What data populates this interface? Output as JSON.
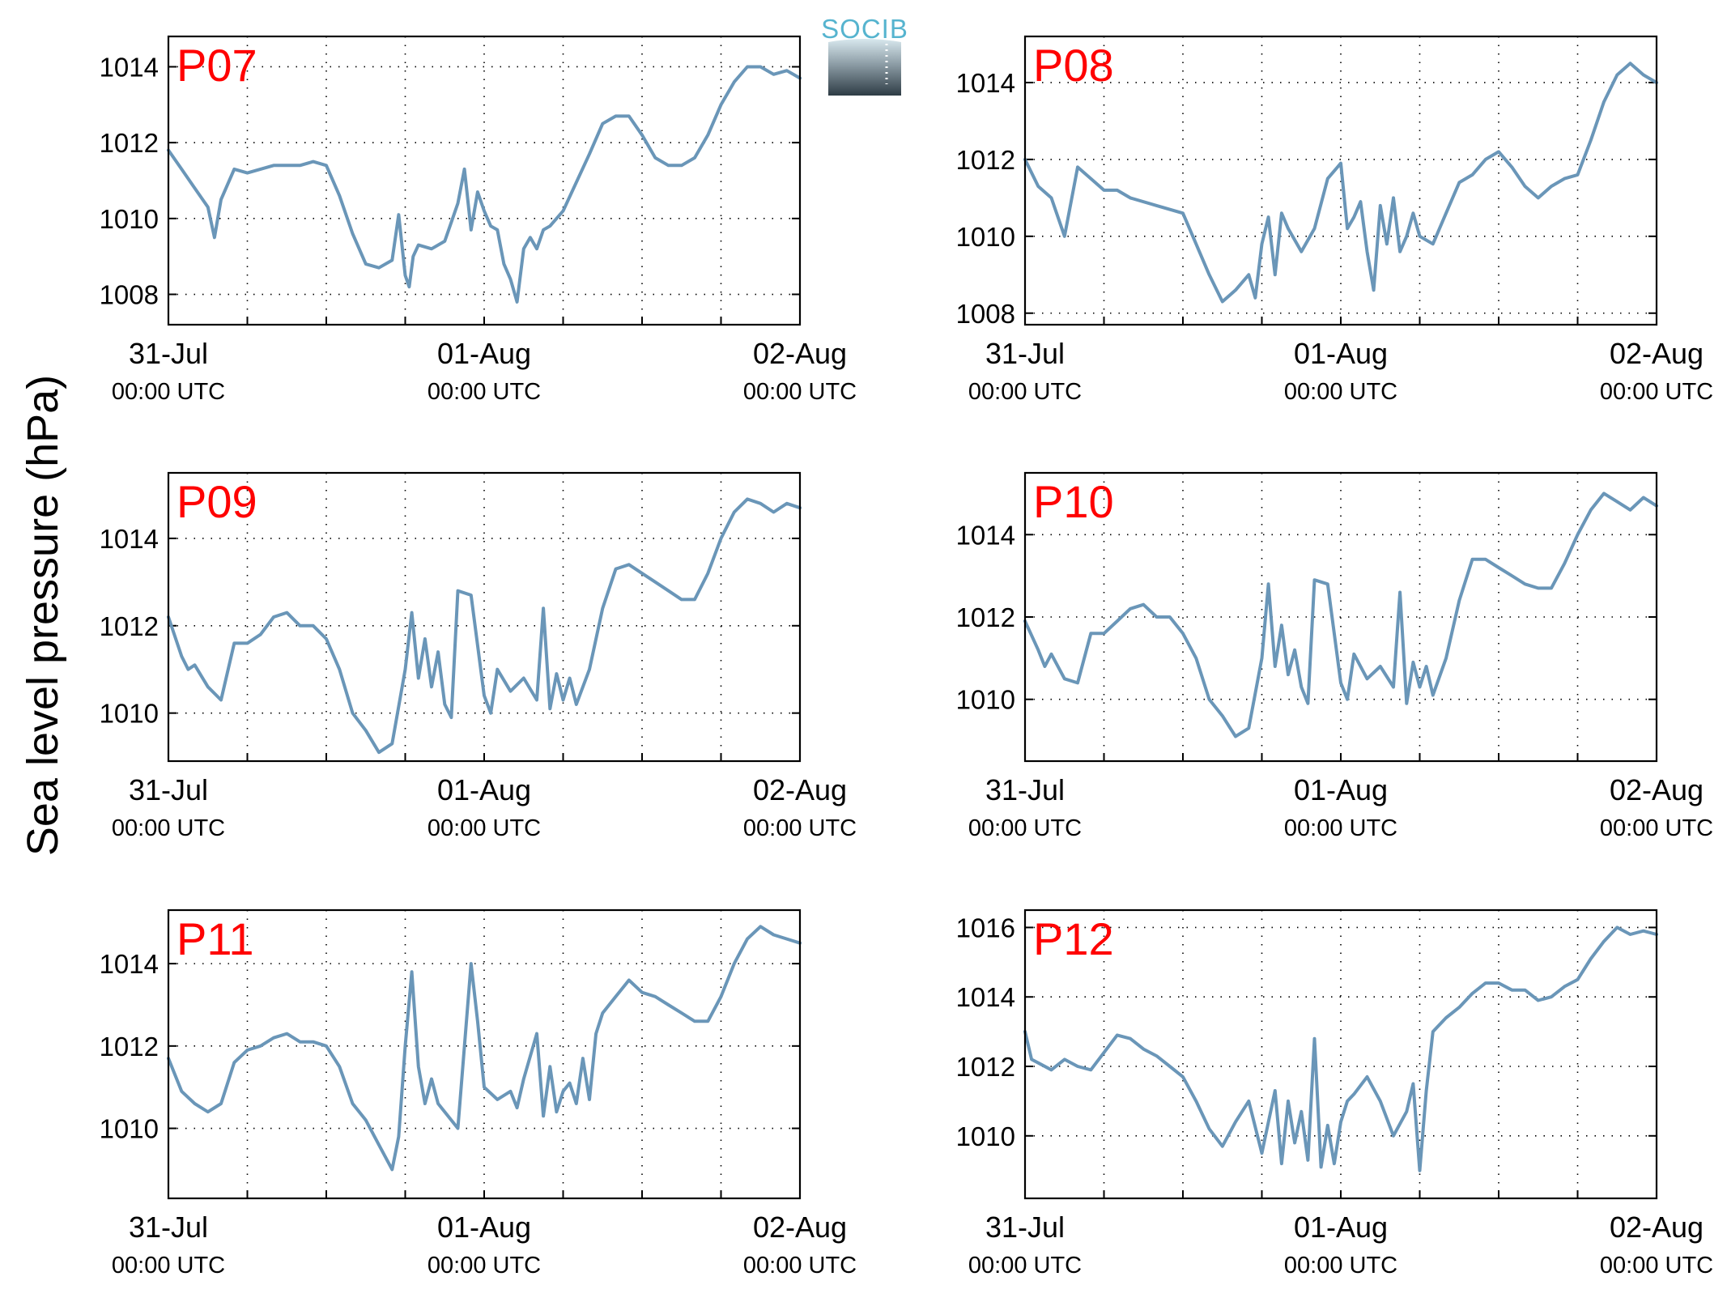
{
  "figure": {
    "ylabel": "Sea level pressure (hPa)",
    "logo_text": "SOCIB",
    "line_color": "#6a96b8",
    "label_color": "#ff0000",
    "grid_style": "dotted",
    "x_ticks": [
      {
        "line1": "31-Jul",
        "line2": "00:00 UTC"
      },
      {
        "line1": "01-Aug",
        "line2": "00:00 UTC"
      },
      {
        "line1": "02-Aug",
        "line2": "00:00 UTC"
      }
    ]
  },
  "chart_data": [
    {
      "type": "line",
      "label": "P07",
      "x_unit": "hours from 31-Jul 00:00 UTC",
      "xlim": [
        0,
        48
      ],
      "ylim": [
        1007.2,
        1014.8
      ],
      "yticks": [
        1008,
        1010,
        1012,
        1014
      ],
      "x": [
        0,
        1,
        2,
        3,
        3.5,
        4,
        5,
        6,
        8,
        10,
        11,
        12,
        13,
        14,
        15,
        16,
        17,
        17.5,
        18,
        18.3,
        18.6,
        19,
        20,
        21,
        22,
        22.5,
        23,
        23.5,
        24,
        24.5,
        25,
        25.5,
        26,
        26.5,
        27,
        27.5,
        28,
        28.5,
        29,
        30,
        32,
        33,
        34,
        35,
        36,
        37,
        38,
        39,
        40,
        41,
        42,
        43,
        44,
        45,
        46,
        47,
        48
      ],
      "values": [
        1011.8,
        1011.3,
        1010.8,
        1010.3,
        1009.5,
        1010.5,
        1011.3,
        1011.2,
        1011.4,
        1011.4,
        1011.5,
        1011.4,
        1010.6,
        1009.6,
        1008.8,
        1008.7,
        1008.9,
        1010.1,
        1008.5,
        1008.2,
        1009.0,
        1009.3,
        1009.2,
        1009.4,
        1010.4,
        1011.3,
        1009.7,
        1010.7,
        1010.2,
        1009.8,
        1009.7,
        1008.8,
        1008.4,
        1007.8,
        1009.2,
        1009.5,
        1009.2,
        1009.7,
        1009.8,
        1010.2,
        1011.7,
        1012.5,
        1012.7,
        1012.7,
        1012.2,
        1011.6,
        1011.4,
        1011.4,
        1011.6,
        1012.2,
        1013.0,
        1013.6,
        1014.0,
        1014.0,
        1013.8,
        1013.9,
        1013.7
      ]
    },
    {
      "type": "line",
      "label": "P08",
      "x_unit": "hours from 31-Jul 00:00 UTC",
      "xlim": [
        0,
        48
      ],
      "ylim": [
        1007.7,
        1015.2
      ],
      "yticks": [
        1008,
        1010,
        1012,
        1014
      ],
      "x": [
        0,
        1,
        2,
        3,
        4,
        5,
        6,
        7,
        8,
        10,
        12,
        13,
        14,
        15,
        16,
        17,
        17.5,
        18,
        18.5,
        19,
        19.5,
        20,
        21,
        22,
        23,
        24,
        24.5,
        25,
        25.5,
        26,
        26.5,
        27,
        27.5,
        28,
        28.5,
        29,
        29.5,
        30,
        31,
        32,
        33,
        34,
        35,
        36,
        37,
        38,
        39,
        40,
        41,
        42,
        43,
        44,
        45,
        46,
        47,
        48
      ],
      "values": [
        1012.0,
        1011.3,
        1011.0,
        1010.0,
        1011.8,
        1011.5,
        1011.2,
        1011.2,
        1011.0,
        1010.8,
        1010.6,
        1009.8,
        1009.0,
        1008.3,
        1008.6,
        1009.0,
        1008.4,
        1009.8,
        1010.5,
        1009.0,
        1010.6,
        1010.2,
        1009.6,
        1010.2,
        1011.5,
        1011.9,
        1010.2,
        1010.5,
        1010.9,
        1009.6,
        1008.6,
        1010.8,
        1009.8,
        1011.0,
        1009.6,
        1010.0,
        1010.6,
        1010.0,
        1009.8,
        1010.6,
        1011.4,
        1011.6,
        1012.0,
        1012.2,
        1011.8,
        1011.3,
        1011.0,
        1011.3,
        1011.5,
        1011.6,
        1012.5,
        1013.5,
        1014.2,
        1014.5,
        1014.2,
        1014.0
      ]
    },
    {
      "type": "line",
      "label": "P09",
      "x_unit": "hours from 31-Jul 00:00 UTC",
      "xlim": [
        0,
        48
      ],
      "ylim": [
        1008.9,
        1015.5
      ],
      "yticks": [
        1010,
        1012,
        1014
      ],
      "x": [
        0,
        1,
        1.5,
        2,
        3,
        4,
        5,
        6,
        7,
        8,
        9,
        10,
        11,
        12,
        13,
        14,
        15,
        16,
        17,
        18,
        18.5,
        19,
        19.5,
        20,
        20.5,
        21,
        21.5,
        22,
        23,
        24,
        24.5,
        25,
        26,
        27,
        28,
        28.5,
        29,
        29.5,
        30,
        30.5,
        31,
        32,
        33,
        34,
        35,
        36,
        37,
        38,
        39,
        40,
        41,
        42,
        43,
        44,
        45,
        46,
        47,
        48
      ],
      "values": [
        1012.2,
        1011.3,
        1011.0,
        1011.1,
        1010.6,
        1010.3,
        1011.6,
        1011.6,
        1011.8,
        1012.2,
        1012.3,
        1012.0,
        1012.0,
        1011.7,
        1011.0,
        1010.0,
        1009.6,
        1009.1,
        1009.3,
        1011.0,
        1012.3,
        1010.8,
        1011.7,
        1010.6,
        1011.4,
        1010.2,
        1009.9,
        1012.8,
        1012.7,
        1010.4,
        1010.0,
        1011.0,
        1010.5,
        1010.8,
        1010.3,
        1012.4,
        1010.1,
        1010.9,
        1010.3,
        1010.8,
        1010.2,
        1011.0,
        1012.4,
        1013.3,
        1013.4,
        1013.2,
        1013.0,
        1012.8,
        1012.6,
        1012.6,
        1013.2,
        1014.0,
        1014.6,
        1014.9,
        1014.8,
        1014.6,
        1014.8,
        1014.7
      ]
    },
    {
      "type": "line",
      "label": "P10",
      "x_unit": "hours from 31-Jul 00:00 UTC",
      "xlim": [
        0,
        48
      ],
      "ylim": [
        1008.5,
        1015.5
      ],
      "yticks": [
        1010,
        1012,
        1014
      ],
      "x": [
        0,
        1,
        1.5,
        2,
        3,
        4,
        5,
        6,
        7,
        8,
        9,
        10,
        11,
        12,
        13,
        14,
        15,
        16,
        17,
        18,
        18.5,
        19,
        19.5,
        20,
        20.5,
        21,
        21.5,
        22,
        23,
        24,
        24.5,
        25,
        26,
        27,
        28,
        28.5,
        29,
        29.5,
        30,
        30.5,
        31,
        32,
        33,
        34,
        35,
        36,
        37,
        38,
        39,
        40,
        41,
        42,
        43,
        44,
        45,
        46,
        47,
        48
      ],
      "values": [
        1011.9,
        1011.2,
        1010.8,
        1011.1,
        1010.5,
        1010.4,
        1011.6,
        1011.6,
        1011.9,
        1012.2,
        1012.3,
        1012.0,
        1012.0,
        1011.6,
        1011.0,
        1010.0,
        1009.6,
        1009.1,
        1009.3,
        1011.0,
        1012.8,
        1010.8,
        1011.8,
        1010.6,
        1011.2,
        1010.3,
        1009.9,
        1012.9,
        1012.8,
        1010.4,
        1010.0,
        1011.1,
        1010.5,
        1010.8,
        1010.3,
        1012.6,
        1009.9,
        1010.9,
        1010.3,
        1010.8,
        1010.1,
        1011.0,
        1012.4,
        1013.4,
        1013.4,
        1013.2,
        1013.0,
        1012.8,
        1012.7,
        1012.7,
        1013.3,
        1014.0,
        1014.6,
        1015.0,
        1014.8,
        1014.6,
        1014.9,
        1014.7
      ]
    },
    {
      "type": "line",
      "label": "P11",
      "x_unit": "hours from 31-Jul 00:00 UTC",
      "xlim": [
        0,
        48
      ],
      "ylim": [
        1008.3,
        1015.3
      ],
      "yticks": [
        1010,
        1012,
        1014
      ],
      "x": [
        0,
        1,
        2,
        3,
        4,
        5,
        6,
        7,
        8,
        9,
        10,
        11,
        12,
        13,
        14,
        15,
        16,
        17,
        17.5,
        18,
        18.5,
        19,
        19.5,
        20,
        20.5,
        21,
        22,
        23,
        23.5,
        24,
        25,
        26,
        26.5,
        27,
        28,
        28.5,
        29,
        29.5,
        30,
        30.5,
        31,
        31.5,
        32,
        32.5,
        33,
        34,
        35,
        36,
        37,
        38,
        39,
        40,
        41,
        42,
        43,
        44,
        45,
        46,
        47,
        48
      ],
      "values": [
        1011.7,
        1010.9,
        1010.6,
        1010.4,
        1010.6,
        1011.6,
        1011.9,
        1012.0,
        1012.2,
        1012.3,
        1012.1,
        1012.1,
        1012.0,
        1011.5,
        1010.6,
        1010.2,
        1009.6,
        1009.0,
        1009.8,
        1012.0,
        1013.8,
        1011.5,
        1010.6,
        1011.2,
        1010.6,
        1010.4,
        1010.0,
        1014.0,
        1012.6,
        1011.0,
        1010.7,
        1010.9,
        1010.5,
        1011.2,
        1012.3,
        1010.3,
        1011.5,
        1010.4,
        1010.9,
        1011.1,
        1010.6,
        1011.7,
        1010.7,
        1012.3,
        1012.8,
        1013.2,
        1013.6,
        1013.3,
        1013.2,
        1013.0,
        1012.8,
        1012.6,
        1012.6,
        1013.2,
        1014.0,
        1014.6,
        1014.9,
        1014.7,
        1014.6,
        1014.5
      ]
    },
    {
      "type": "line",
      "label": "P12",
      "x_unit": "hours from 31-Jul 00:00 UTC",
      "xlim": [
        0,
        48
      ],
      "ylim": [
        1008.2,
        1016.5
      ],
      "yticks": [
        1010,
        1012,
        1014,
        1016
      ],
      "x": [
        0,
        0.5,
        1,
        2,
        3,
        4,
        5,
        6,
        7,
        8,
        9,
        10,
        11,
        12,
        13,
        14,
        15,
        16,
        17,
        18,
        19,
        19.5,
        20,
        20.5,
        21,
        21.5,
        22,
        22.5,
        23,
        23.5,
        24,
        24.5,
        25,
        26,
        27,
        28,
        29,
        29.5,
        30,
        30.5,
        31,
        32,
        33,
        34,
        35,
        36,
        37,
        38,
        39,
        40,
        41,
        42,
        43,
        44,
        45,
        46,
        47,
        48
      ],
      "values": [
        1013.0,
        1012.2,
        1012.1,
        1011.9,
        1012.2,
        1012.0,
        1011.9,
        1012.4,
        1012.9,
        1012.8,
        1012.5,
        1012.3,
        1012.0,
        1011.7,
        1011.0,
        1010.2,
        1009.7,
        1010.4,
        1011.0,
        1009.5,
        1011.3,
        1009.2,
        1011.0,
        1009.8,
        1010.7,
        1009.3,
        1012.8,
        1009.1,
        1010.3,
        1009.2,
        1010.4,
        1011.0,
        1011.2,
        1011.7,
        1011.0,
        1010.0,
        1010.7,
        1011.5,
        1009.0,
        1011.3,
        1013.0,
        1013.4,
        1013.7,
        1014.1,
        1014.4,
        1014.4,
        1014.2,
        1014.2,
        1013.9,
        1014.0,
        1014.3,
        1014.5,
        1015.1,
        1015.6,
        1016.0,
        1015.8,
        1015.9,
        1015.8
      ]
    }
  ]
}
